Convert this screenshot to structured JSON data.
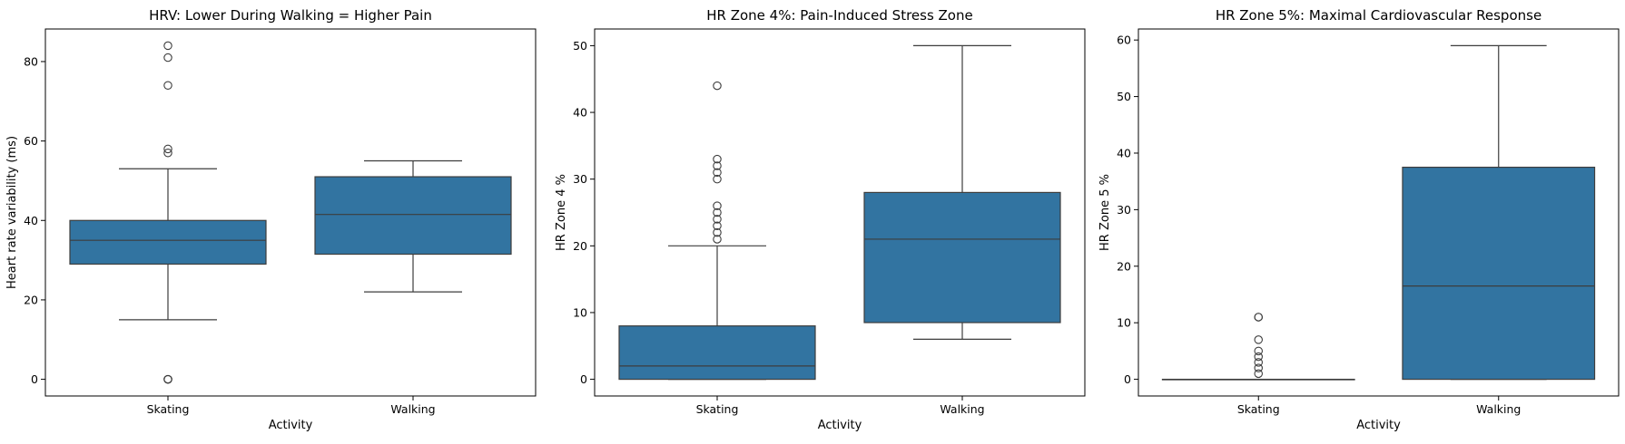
{
  "chart_data": [
    {
      "type": "box",
      "title": "HRV: Lower During Walking = Higher Pain",
      "xlabel": "Activity",
      "ylabel": "Heart rate variability (ms)",
      "categories": [
        "Skating",
        "Walking"
      ],
      "ylim": [
        -4.2,
        88.2
      ],
      "yticks": [
        0,
        20,
        40,
        60,
        80
      ],
      "box_color": "#3274a1",
      "boxes": [
        {
          "category": "Skating",
          "whisker_low": 15,
          "q1": 29,
          "median": 35,
          "q3": 40,
          "whisker_high": 53,
          "outliers": [
            0,
            0,
            0,
            57,
            58,
            74,
            81,
            84
          ]
        },
        {
          "category": "Walking",
          "whisker_low": 22,
          "q1": 31.5,
          "median": 41.5,
          "q3": 51,
          "whisker_high": 55,
          "outliers": []
        }
      ]
    },
    {
      "type": "box",
      "title": "HR Zone 4%: Pain-Induced Stress Zone",
      "xlabel": "Activity",
      "ylabel": "HR Zone 4 %",
      "categories": [
        "Skating",
        "Walking"
      ],
      "ylim": [
        -2.5,
        52.5
      ],
      "yticks": [
        0,
        10,
        20,
        30,
        40,
        50
      ],
      "box_color": "#3274a1",
      "boxes": [
        {
          "category": "Skating",
          "whisker_low": 0,
          "q1": 0,
          "median": 2,
          "q3": 8,
          "whisker_high": 20,
          "outliers": [
            21,
            22,
            23,
            24,
            25,
            26,
            30,
            31,
            32,
            33,
            44
          ]
        },
        {
          "category": "Walking",
          "whisker_low": 6,
          "q1": 8.5,
          "median": 21,
          "q3": 28,
          "whisker_high": 50,
          "outliers": []
        }
      ]
    },
    {
      "type": "box",
      "title": "HR Zone 5%: Maximal Cardiovascular Response",
      "xlabel": "Activity",
      "ylabel": "HR Zone 5 %",
      "categories": [
        "Skating",
        "Walking"
      ],
      "ylim": [
        -2.95,
        61.95
      ],
      "yticks": [
        0,
        10,
        20,
        30,
        40,
        50,
        60
      ],
      "box_color": "#3274a1",
      "boxes": [
        {
          "category": "Skating",
          "whisker_low": 0,
          "q1": 0,
          "median": 0,
          "q3": 0,
          "whisker_high": 0,
          "outliers": [
            1,
            2,
            3,
            4,
            5,
            7,
            11,
            11
          ]
        },
        {
          "category": "Walking",
          "whisker_low": 0,
          "q1": 0,
          "median": 16.5,
          "q3": 37.5,
          "whisker_high": 59,
          "outliers": []
        }
      ]
    }
  ]
}
